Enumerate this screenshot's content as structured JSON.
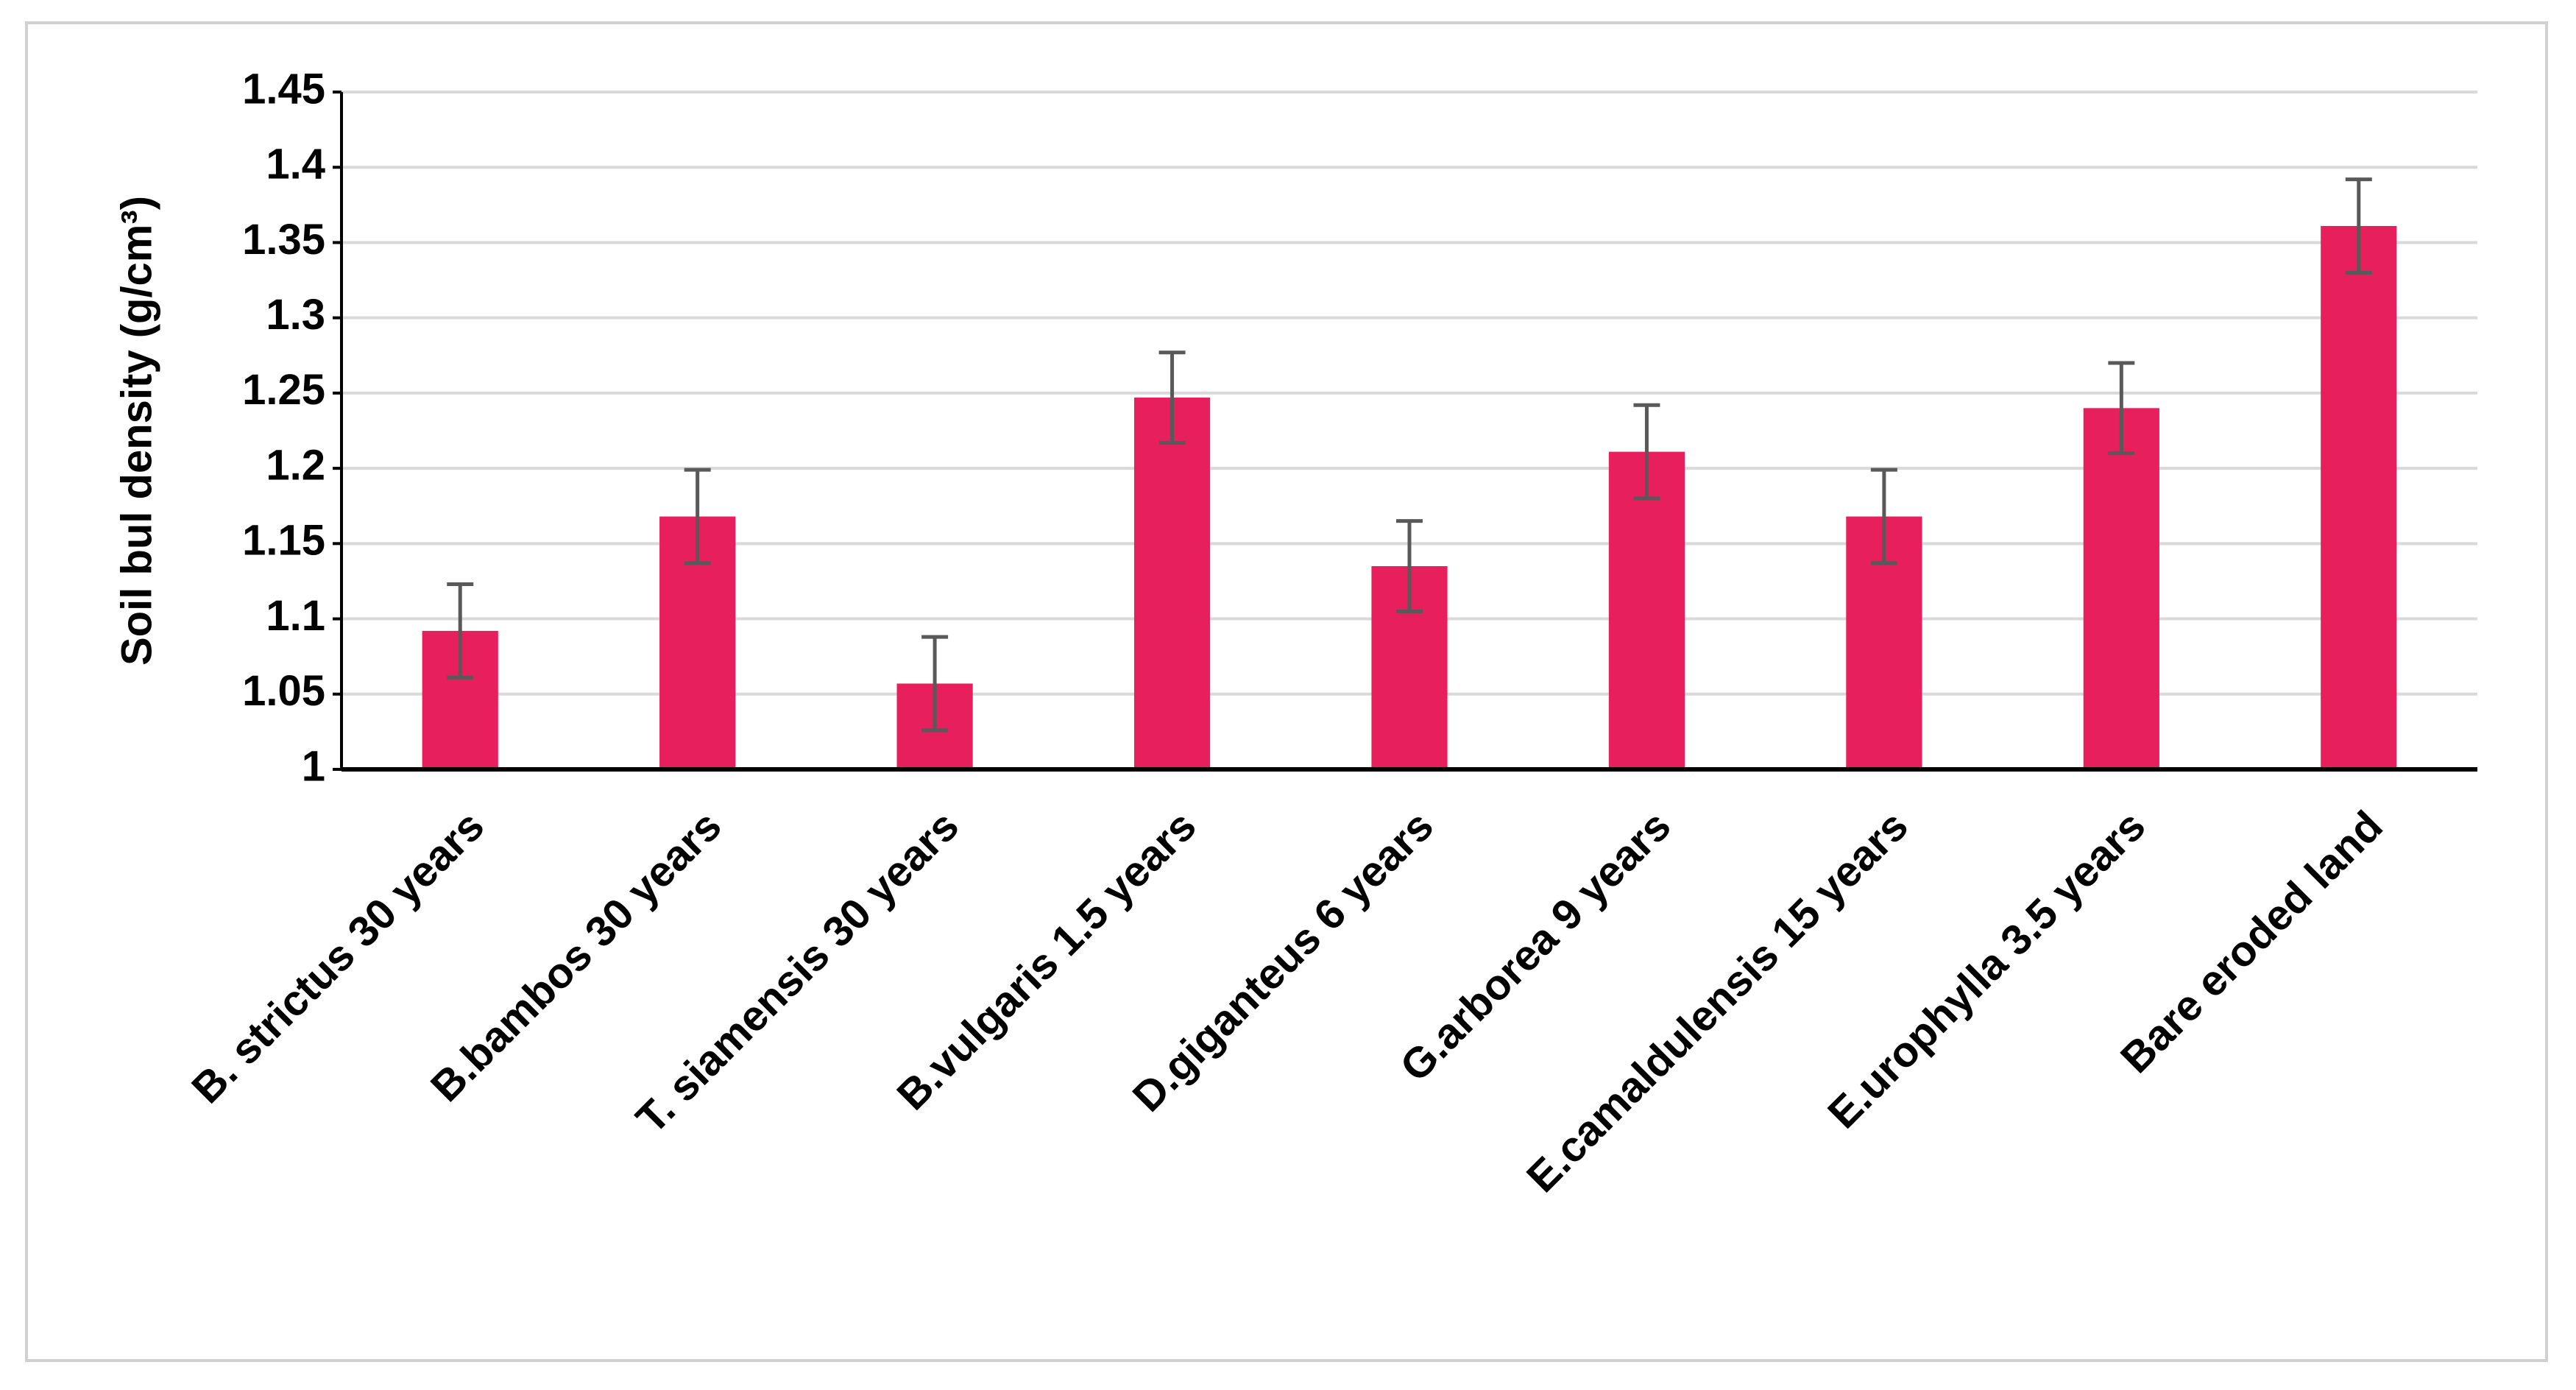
{
  "chart_data": {
    "type": "bar",
    "ylabel": "Soil bul density (g/cm³)",
    "categories": [
      "B. strictus 30 years",
      "B.bambos 30 years",
      "T. siamensis 30 years",
      "B.vulgaris 1.5 years",
      "D.giganteus 6 years",
      "G.arborea 9 years",
      "E.camaldulensis 15 years",
      "E.urophylla 3.5 years",
      "Bare eroded land"
    ],
    "values": [
      1.092,
      1.168,
      1.057,
      1.247,
      1.135,
      1.211,
      1.168,
      1.24,
      1.361
    ],
    "errors": [
      0.031,
      0.031,
      0.031,
      0.03,
      0.03,
      0.031,
      0.031,
      0.03,
      0.031
    ],
    "color": "#e81f5d",
    "ylim": [
      1,
      1.45
    ],
    "yticks": [
      1,
      1.05,
      1.1,
      1.15,
      1.2,
      1.25,
      1.3,
      1.35,
      1.4,
      1.45
    ],
    "grid": true
  }
}
